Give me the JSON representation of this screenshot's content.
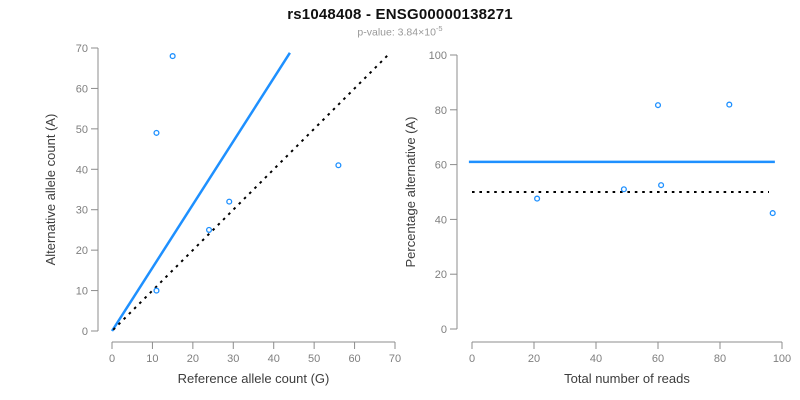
{
  "header": {
    "title": "rs1048408 - ENSG00000138271",
    "p_value_prefix": "p-value: 3.84×10",
    "p_value_exponent": "-5"
  },
  "colors": {
    "accent_blue": "#1E90FF",
    "dotted_black": "#000000",
    "point_blue": "#1E90FF",
    "axis_gray": "#8c8c8c",
    "tick_label_gray": "#7f7f7f",
    "axis_title_dark": "#3d3d3d",
    "title_black": "#111111",
    "subtitle_gray": "#999999"
  },
  "chart_data": [
    {
      "type": "scatter",
      "name": "ref-vs-alt-allele-count",
      "title": "",
      "xlabel": "Reference allele count (G)",
      "ylabel": "Alternative allele count (A)",
      "xlim": [
        0,
        70
      ],
      "ylim": [
        0,
        70
      ],
      "xticks": [
        0,
        10,
        20,
        30,
        40,
        50,
        60,
        70
      ],
      "yticks": [
        0,
        10,
        20,
        30,
        40,
        50,
        60,
        70
      ],
      "grid": false,
      "legend": null,
      "marker": "open-circle",
      "points": [
        {
          "x": 11,
          "y": 10
        },
        {
          "x": 24,
          "y": 25
        },
        {
          "x": 29,
          "y": 32
        },
        {
          "x": 11,
          "y": 49
        },
        {
          "x": 15,
          "y": 68
        },
        {
          "x": 56,
          "y": 41
        }
      ],
      "lines": [
        {
          "name": "fitted-ratio-line",
          "style": "solid",
          "color": "#1E90FF",
          "width": 2.5,
          "x1": 0,
          "y1": 0,
          "x2": 44,
          "y2": 68.8
        },
        {
          "name": "identity-line",
          "style": "dotted",
          "color": "#000000",
          "width": 2,
          "x1": 0.3,
          "y1": 0.3,
          "x2": 68.2,
          "y2": 68.2
        }
      ]
    },
    {
      "type": "scatter",
      "name": "reads-vs-percentage-alternative",
      "title": "",
      "xlabel": "Total number of reads",
      "ylabel": "Percentage alternative (A)",
      "xlim": [
        0,
        100
      ],
      "ylim": [
        0,
        100
      ],
      "xticks": [
        0,
        20,
        40,
        60,
        80,
        100
      ],
      "yticks": [
        0,
        20,
        40,
        60,
        80,
        100
      ],
      "grid": false,
      "legend": null,
      "marker": "open-circle",
      "points": [
        {
          "x": 21,
          "y": 47.6
        },
        {
          "x": 49,
          "y": 51.0
        },
        {
          "x": 61,
          "y": 52.5
        },
        {
          "x": 60,
          "y": 81.7
        },
        {
          "x": 83,
          "y": 81.9
        },
        {
          "x": 97,
          "y": 42.3
        }
      ],
      "lines": [
        {
          "name": "mean-percentage-line",
          "style": "solid",
          "color": "#1E90FF",
          "width": 2.5,
          "x1": -1,
          "y1": 61,
          "x2": 97.7,
          "y2": 61
        },
        {
          "name": "fifty-percent-line",
          "style": "dotted",
          "color": "#000000",
          "width": 2,
          "x1": 0,
          "y1": 50,
          "x2": 95.8,
          "y2": 50
        }
      ]
    }
  ]
}
